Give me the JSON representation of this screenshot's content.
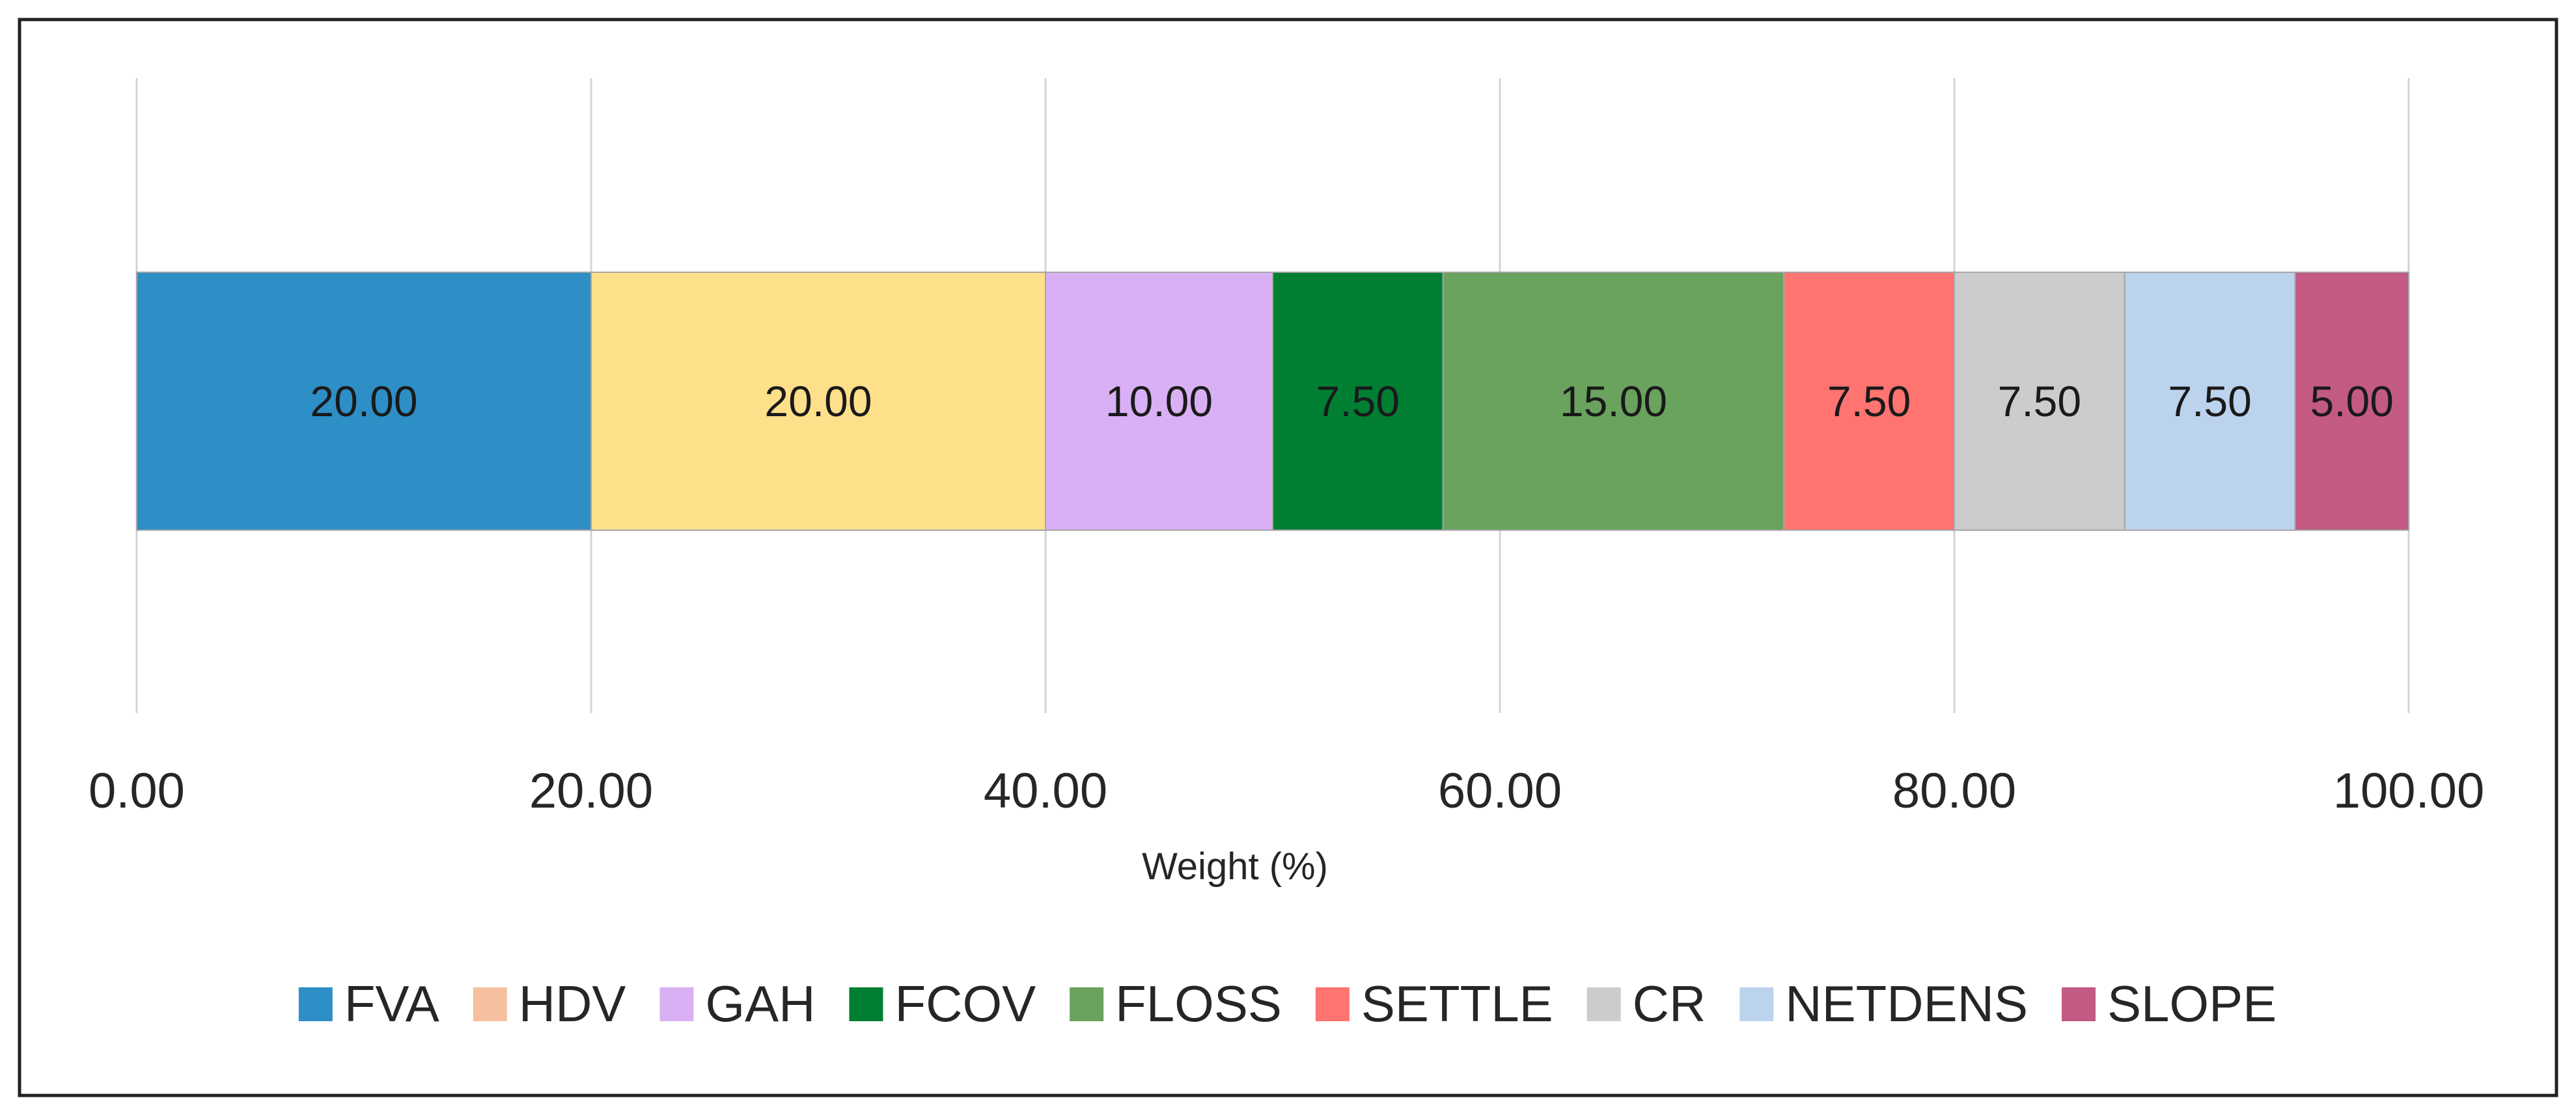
{
  "chart_data": {
    "type": "bar",
    "orientation": "horizontal",
    "stacked": true,
    "title": "",
    "xlabel": "Weight (%)",
    "ylabel": "",
    "xlim": [
      0,
      100
    ],
    "x_ticks": [
      "0.00",
      "20.00",
      "40.00",
      "60.00",
      "80.00",
      "100.00"
    ],
    "grid": "vertical",
    "legend_position": "bottom",
    "series": [
      {
        "name": "FVA",
        "value": 20.0,
        "label": "20.00",
        "color": "#2e8ec6"
      },
      {
        "name": "HDV",
        "value": 20.0,
        "label": "20.00",
        "color": "#ffe08a",
        "legend_color": "#f6bfa0"
      },
      {
        "name": "GAH",
        "value": 10.0,
        "label": "10.00",
        "color": "#d9b0f4"
      },
      {
        "name": "FCOV",
        "value": 7.5,
        "label": "7.50",
        "color": "#007f33"
      },
      {
        "name": "FLOSS",
        "value": 15.0,
        "label": "15.00",
        "color": "#6aa35e"
      },
      {
        "name": "SETTLE",
        "value": 7.5,
        "label": "7.50",
        "color": "#ff7370"
      },
      {
        "name": "CR",
        "value": 7.5,
        "label": "7.50",
        "color": "#cccccc"
      },
      {
        "name": "NETDENS",
        "value": 7.5,
        "label": "7.50",
        "color": "#bcd3ee"
      },
      {
        "name": "SLOPE",
        "value": 5.0,
        "label": "5.00",
        "color": "#c25a84"
      }
    ]
  }
}
